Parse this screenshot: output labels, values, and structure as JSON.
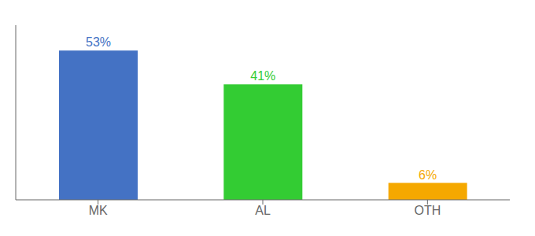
{
  "chart_data": {
    "type": "bar",
    "categories": [
      "MK",
      "AL",
      "OTH"
    ],
    "values": [
      53,
      41,
      6
    ],
    "value_labels": [
      "53%",
      "41%",
      "6%"
    ],
    "colors": [
      "#4472c4",
      "#33cc33",
      "#f5a800"
    ],
    "ylim": [
      0,
      62
    ],
    "data_labels": true,
    "tick_labels": "x",
    "grid": false
  }
}
